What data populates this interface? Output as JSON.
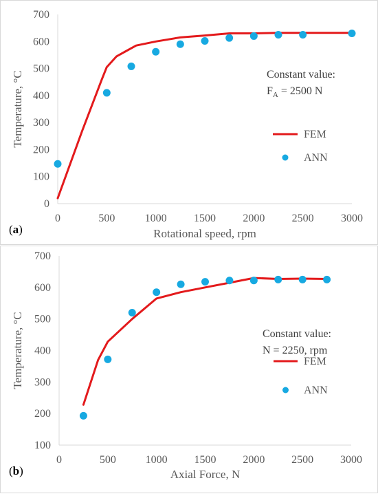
{
  "chart_data": [
    {
      "type": "line",
      "panel_label_open": "(",
      "panel_label_letter": "a",
      "panel_label_close": ")",
      "xlabel": "Rotational speed, rpm",
      "ylabel": "Temperature, °C",
      "xlim": [
        0,
        3000
      ],
      "ylim": [
        0,
        700
      ],
      "xticks": [
        0,
        500,
        1000,
        1500,
        2000,
        2500,
        3000
      ],
      "yticks": [
        0,
        100,
        200,
        300,
        400,
        500,
        600,
        700
      ],
      "grid": false,
      "annotation_line1": "Constant value:",
      "annotation_line2_prefix": "F",
      "annotation_line2_sub": "A",
      "annotation_line2_rest": " = 2500 N",
      "legend_position": "right",
      "series": [
        {
          "name": "FEM",
          "style": "line",
          "color": "#e31a1c",
          "x": [
            0,
            250,
            450,
            500,
            600,
            700,
            800,
            1000,
            1250,
            1500,
            1750,
            2000,
            2250,
            2500,
            2750,
            3000
          ],
          "y": [
            20,
            270,
            460,
            505,
            545,
            565,
            585,
            600,
            615,
            622,
            630,
            630,
            632,
            632,
            632,
            632
          ]
        },
        {
          "name": "ANN",
          "style": "markers",
          "color": "#17a9e1",
          "x": [
            0,
            500,
            750,
            1000,
            1250,
            1500,
            1750,
            2000,
            2250,
            2500,
            3000
          ],
          "y": [
            147,
            410,
            508,
            562,
            590,
            602,
            613,
            620,
            625,
            625,
            630
          ]
        }
      ]
    },
    {
      "type": "line",
      "panel_label_open": "(",
      "panel_label_letter": "b",
      "panel_label_close": ")",
      "xlabel": "Axial Force, N",
      "ylabel": "Temperature, °C",
      "xlim": [
        0,
        3000
      ],
      "ylim": [
        100,
        700
      ],
      "xticks": [
        0,
        500,
        1000,
        1500,
        2000,
        2500,
        3000
      ],
      "yticks": [
        100,
        200,
        300,
        400,
        500,
        600,
        700
      ],
      "grid": false,
      "annotation_line1": "Constant value:",
      "annotation_line2_prefix": "N = 2250, rpm",
      "annotation_line2_sub": "",
      "annotation_line2_rest": "",
      "legend_position": "right",
      "series": [
        {
          "name": "FEM",
          "style": "line",
          "color": "#e31a1c",
          "x": [
            250,
            400,
            500,
            750,
            1000,
            1250,
            1500,
            1750,
            2000,
            2250,
            2500,
            2750
          ],
          "y": [
            228,
            370,
            428,
            500,
            565,
            585,
            600,
            615,
            630,
            627,
            628,
            627
          ]
        },
        {
          "name": "ANN",
          "style": "markers",
          "color": "#17a9e1",
          "x": [
            250,
            500,
            750,
            1000,
            1250,
            1500,
            1750,
            2000,
            2250,
            2500,
            2750
          ],
          "y": [
            193,
            372,
            520,
            585,
            610,
            618,
            622,
            622,
            625,
            625,
            625
          ]
        }
      ]
    }
  ]
}
